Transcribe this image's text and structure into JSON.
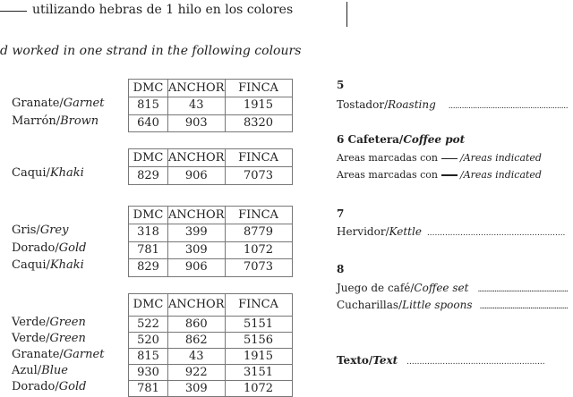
{
  "intro_es": "utilizando hebras de 1 hilo en los colores",
  "intro_en": "d worked in one strand in the following colours",
  "headers": [
    "DMC",
    "ANCHOR",
    "FINCA"
  ],
  "tables": [
    {
      "rows": [
        {
          "es": "Granate/",
          "en": "Garnet",
          "v": [
            "815",
            "43",
            "1915"
          ]
        },
        {
          "es": "Marrón/",
          "en": "Brown",
          "v": [
            "640",
            "903",
            "8320"
          ]
        }
      ]
    },
    {
      "rows": [
        {
          "es": "Caqui/",
          "en": "Khaki",
          "v": [
            "829",
            "906",
            "7073"
          ]
        }
      ]
    },
    {
      "rows": [
        {
          "es": "Gris/",
          "en": "Grey",
          "v": [
            "318",
            "399",
            "8779"
          ]
        },
        {
          "es": "Dorado/",
          "en": "Gold",
          "v": [
            "781",
            "309",
            "1072"
          ]
        },
        {
          "es": "Caqui/",
          "en": "Khaki",
          "v": [
            "829",
            "906",
            "7073"
          ]
        }
      ]
    },
    {
      "rows": [
        {
          "es": "Verde/",
          "en": "Green",
          "v": [
            "522",
            "860",
            "5151"
          ]
        },
        {
          "es": "Verde/",
          "en": "Green",
          "v": [
            "520",
            "862",
            "5156"
          ]
        },
        {
          "es": "Granate/",
          "en": "Garnet",
          "v": [
            "815",
            "43",
            "1915"
          ]
        },
        {
          "es": "Azul/",
          "en": "Blue",
          "v": [
            "930",
            "922",
            "3151"
          ]
        },
        {
          "es": "Dorado/",
          "en": "Gold",
          "v": [
            "781",
            "309",
            "1072"
          ]
        }
      ]
    }
  ],
  "right": {
    "s5": "5",
    "tostador_es": "Tostador/",
    "tostador_en": "Roasting",
    "s6_es": "6 Cafetera/",
    "s6_en": "Coffee pot",
    "areas_es": "Areas marcadas con",
    "areas_en": "/Areas indicated",
    "s7": "7",
    "hervidor_es": "Hervidor/",
    "hervidor_en": "Kettle",
    "s8": "8",
    "juego_es": "Juego de café/",
    "juego_en": "Coffee set",
    "cuch_es": "Cucharillas/",
    "cuch_en": "Little spoons",
    "texto_es": "Texto/",
    "texto_en": "Text",
    "leader": "......................................................"
  }
}
